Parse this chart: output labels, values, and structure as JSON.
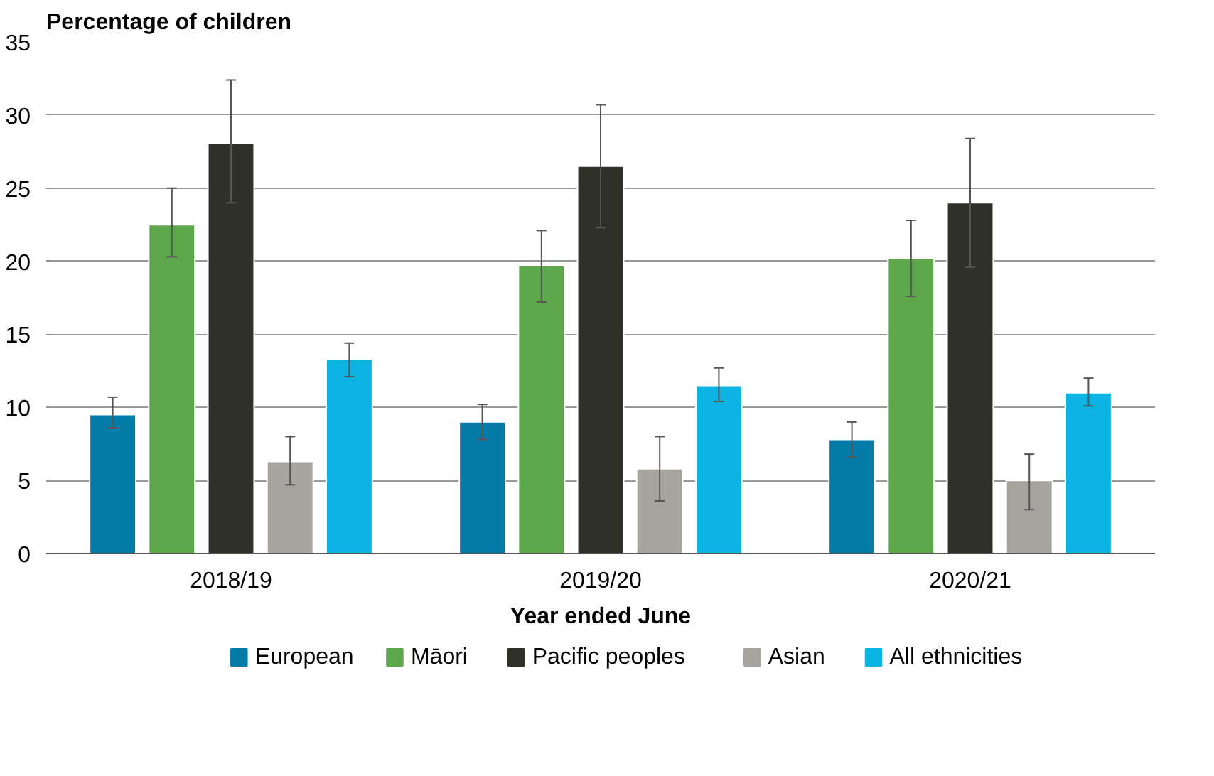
{
  "chart_data": {
    "type": "bar",
    "ylabel": "Percentage of children",
    "xlabel": "Year ended June",
    "categories": [
      "2018/19",
      "2019/20",
      "2020/21"
    ],
    "series": [
      {
        "name": "European",
        "color": "#057ca8",
        "values": [
          9.5,
          9.0,
          7.8
        ],
        "errors": [
          [
            8.6,
            10.7
          ],
          [
            7.8,
            10.2
          ],
          [
            6.6,
            9.0
          ]
        ]
      },
      {
        "name": "Māori",
        "color": "#5ea64a",
        "values": [
          22.5,
          19.7,
          20.2
        ],
        "errors": [
          [
            20.3,
            25.0
          ],
          [
            17.2,
            22.1
          ],
          [
            17.6,
            22.8
          ]
        ]
      },
      {
        "name": "Pacific peoples",
        "color": "#2f3128",
        "values": [
          28.1,
          26.5,
          24.0
        ],
        "errors": [
          [
            24.0,
            32.4
          ],
          [
            22.3,
            30.7
          ],
          [
            19.6,
            28.4
          ]
        ]
      },
      {
        "name": "Asian",
        "color": "#a7a39f",
        "values": [
          6.3,
          5.8,
          5.0
        ],
        "errors": [
          [
            4.7,
            8.0
          ],
          [
            3.6,
            8.0
          ],
          [
            3.0,
            6.8
          ]
        ]
      },
      {
        "name": "All ethnicities",
        "color": "#0bb3e3",
        "values": [
          13.3,
          11.5,
          11.0
        ],
        "errors": [
          [
            12.1,
            14.4
          ],
          [
            10.4,
            12.7
          ],
          [
            10.1,
            12.0
          ]
        ]
      }
    ],
    "ylim": [
      0,
      35
    ],
    "yticks": [
      0,
      5,
      10,
      15,
      20,
      25,
      30,
      35
    ],
    "grid": "y",
    "legend": "bottom"
  }
}
